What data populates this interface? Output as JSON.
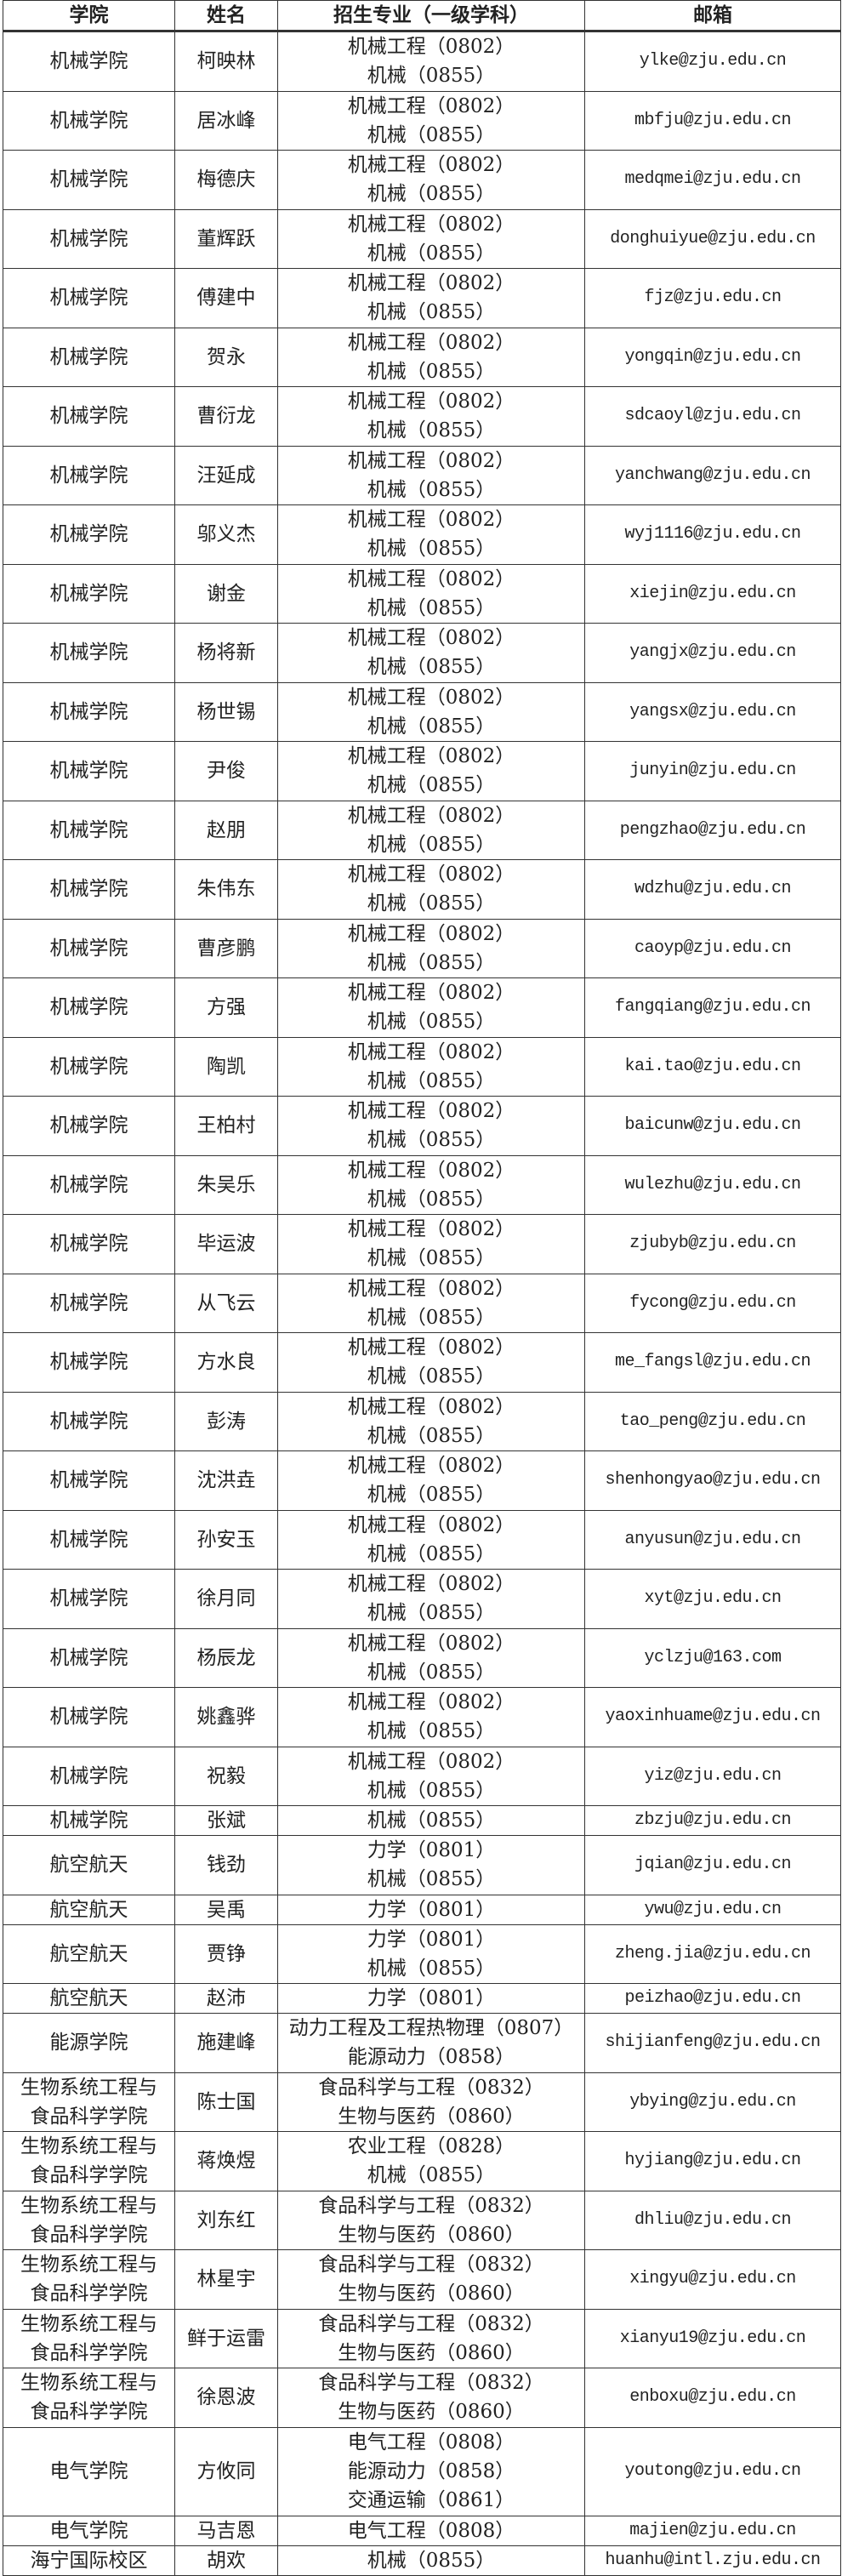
{
  "headers": [
    "学院",
    "姓名",
    "招生专业（一级学科）",
    "邮箱"
  ],
  "rows": [
    {
      "college": "机械学院",
      "name": "柯映林",
      "majors": [
        "机械工程（0802）",
        "机械（0855）"
      ],
      "email": "ylke@zju.edu.cn"
    },
    {
      "college": "机械学院",
      "name": "居冰峰",
      "majors": [
        "机械工程（0802）",
        "机械（0855）"
      ],
      "email": "mbfju@zju.edu.cn"
    },
    {
      "college": "机械学院",
      "name": "梅德庆",
      "majors": [
        "机械工程（0802）",
        "机械（0855）"
      ],
      "email": "medqmei@zju.edu.cn"
    },
    {
      "college": "机械学院",
      "name": "董辉跃",
      "majors": [
        "机械工程（0802）",
        "机械（0855）"
      ],
      "email": "donghuiyue@zju.edu.cn"
    },
    {
      "college": "机械学院",
      "name": "傅建中",
      "majors": [
        "机械工程（0802）",
        "机械（0855）"
      ],
      "email": "fjz@zju.edu.cn"
    },
    {
      "college": "机械学院",
      "name": "贺永",
      "majors": [
        "机械工程（0802）",
        "机械（0855）"
      ],
      "email": "yongqin@zju.edu.cn"
    },
    {
      "college": "机械学院",
      "name": "曹衍龙",
      "majors": [
        "机械工程（0802）",
        "机械（0855）"
      ],
      "email": "sdcaoyl@zju.edu.cn"
    },
    {
      "college": "机械学院",
      "name": "汪延成",
      "majors": [
        "机械工程（0802）",
        "机械（0855）"
      ],
      "email": "yanchwang@zju.edu.cn"
    },
    {
      "college": "机械学院",
      "name": "邬义杰",
      "majors": [
        "机械工程（0802）",
        "机械（0855）"
      ],
      "email": "wyj1116@zju.edu.cn"
    },
    {
      "college": "机械学院",
      "name": "谢金",
      "majors": [
        "机械工程（0802）",
        "机械（0855）"
      ],
      "email": "xiejin@zju.edu.cn"
    },
    {
      "college": "机械学院",
      "name": "杨将新",
      "majors": [
        "机械工程（0802）",
        "机械（0855）"
      ],
      "email": "yangjx@zju.edu.cn"
    },
    {
      "college": "机械学院",
      "name": "杨世锡",
      "majors": [
        "机械工程（0802）",
        "机械（0855）"
      ],
      "email": "yangsx@zju.edu.cn"
    },
    {
      "college": "机械学院",
      "name": "尹俊",
      "majors": [
        "机械工程（0802）",
        "机械（0855）"
      ],
      "email": "junyin@zju.edu.cn"
    },
    {
      "college": "机械学院",
      "name": "赵朋",
      "majors": [
        "机械工程（0802）",
        "机械（0855）"
      ],
      "email": "pengzhao@zju.edu.cn"
    },
    {
      "college": "机械学院",
      "name": "朱伟东",
      "majors": [
        "机械工程（0802）",
        "机械（0855）"
      ],
      "email": "wdzhu@zju.edu.cn"
    },
    {
      "college": "机械学院",
      "name": "曹彦鹏",
      "majors": [
        "机械工程（0802）",
        "机械（0855）"
      ],
      "email": "caoyp@zju.edu.cn"
    },
    {
      "college": "机械学院",
      "name": "方强",
      "majors": [
        "机械工程（0802）",
        "机械（0855）"
      ],
      "email": "fangqiang@zju.edu.cn"
    },
    {
      "college": "机械学院",
      "name": "陶凯",
      "majors": [
        "机械工程（0802）",
        "机械（0855）"
      ],
      "email": "kai.tao@zju.edu.cn"
    },
    {
      "college": "机械学院",
      "name": "王柏村",
      "majors": [
        "机械工程（0802）",
        "机械（0855）"
      ],
      "email": "baicunw@zju.edu.cn"
    },
    {
      "college": "机械学院",
      "name": "朱吴乐",
      "majors": [
        "机械工程（0802）",
        "机械（0855）"
      ],
      "email": "wulezhu@zju.edu.cn"
    },
    {
      "college": "机械学院",
      "name": "毕运波",
      "majors": [
        "机械工程（0802）",
        "机械（0855）"
      ],
      "email": "zjubyb@zju.edu.cn"
    },
    {
      "college": "机械学院",
      "name": "从飞云",
      "majors": [
        "机械工程（0802）",
        "机械（0855）"
      ],
      "email": "fycong@zju.edu.cn"
    },
    {
      "college": "机械学院",
      "name": "方水良",
      "majors": [
        "机械工程（0802）",
        "机械（0855）"
      ],
      "email": "me_fangsl@zju.edu.cn"
    },
    {
      "college": "机械学院",
      "name": "彭涛",
      "majors": [
        "机械工程（0802）",
        "机械（0855）"
      ],
      "email": "tao_peng@zju.edu.cn"
    },
    {
      "college": "机械学院",
      "name": "沈洪垚",
      "majors": [
        "机械工程（0802）",
        "机械（0855）"
      ],
      "email": "shenhongyao@zju.edu.cn"
    },
    {
      "college": "机械学院",
      "name": "孙安玉",
      "majors": [
        "机械工程（0802）",
        "机械（0855）"
      ],
      "email": "anyusun@zju.edu.cn"
    },
    {
      "college": "机械学院",
      "name": "徐月同",
      "majors": [
        "机械工程（0802）",
        "机械（0855）"
      ],
      "email": "xyt@zju.edu.cn"
    },
    {
      "college": "机械学院",
      "name": "杨辰龙",
      "majors": [
        "机械工程（0802）",
        "机械（0855）"
      ],
      "email": "yclzju@163.com"
    },
    {
      "college": "机械学院",
      "name": "姚鑫骅",
      "majors": [
        "机械工程（0802）",
        "机械（0855）"
      ],
      "email": "yaoxinhuame@zju.edu.cn"
    },
    {
      "college": "机械学院",
      "name": "祝毅",
      "majors": [
        "机械工程（0802）",
        "机械（0855）"
      ],
      "email": "yiz@zju.edu.cn"
    },
    {
      "college": "机械学院",
      "name": "张斌",
      "majors": [
        "机械（0855）"
      ],
      "email": "zbzju@zju.edu.cn"
    },
    {
      "college": "航空航天",
      "name": "钱劲",
      "majors": [
        "力学（0801）",
        "机械（0855）"
      ],
      "email": "jqian@zju.edu.cn"
    },
    {
      "college": "航空航天",
      "name": "吴禹",
      "majors": [
        "力学（0801）"
      ],
      "email": "ywu@zju.edu.cn"
    },
    {
      "college": "航空航天",
      "name": "贾铮",
      "majors": [
        "力学（0801）",
        "机械（0855）"
      ],
      "email": "zheng.jia@zju.edu.cn"
    },
    {
      "college": "航空航天",
      "name": "赵沛",
      "majors": [
        "力学（0801）"
      ],
      "email": "peizhao@zju.edu.cn"
    },
    {
      "college": "能源学院",
      "name": "施建峰",
      "majors": [
        "动力工程及工程热物理（0807）",
        "能源动力（0858）"
      ],
      "email": "shijianfeng@zju.edu.cn"
    },
    {
      "college": "生物系统工程与食品科学学院",
      "name": "陈士国",
      "majors": [
        "食品科学与工程（0832）",
        "生物与医药（0860）"
      ],
      "email": "ybying@zju.edu.cn"
    },
    {
      "college": "生物系统工程与食品科学学院",
      "name": "蒋焕煜",
      "majors": [
        "农业工程（0828）",
        "机械（0855）"
      ],
      "email": "hyjiang@zju.edu.cn"
    },
    {
      "college": "生物系统工程与食品科学学院",
      "name": "刘东红",
      "majors": [
        "食品科学与工程（0832）",
        "生物与医药（0860）"
      ],
      "email": "dhliu@zju.edu.cn"
    },
    {
      "college": "生物系统工程与食品科学学院",
      "name": "林星宇",
      "majors": [
        "食品科学与工程（0832）",
        "生物与医药（0860）"
      ],
      "email": "xingyu@zju.edu.cn"
    },
    {
      "college": "生物系统工程与食品科学学院",
      "name": "鲜于运雷",
      "majors": [
        "食品科学与工程（0832）",
        "生物与医药（0860）"
      ],
      "email": "xianyu19@zju.edu.cn"
    },
    {
      "college": "生物系统工程与食品科学学院",
      "name": "徐恩波",
      "majors": [
        "食品科学与工程（0832）",
        "生物与医药（0860）"
      ],
      "email": "enboxu@zju.edu.cn"
    },
    {
      "college": "电气学院",
      "name": "方攸同",
      "majors": [
        "电气工程（0808）",
        "能源动力（0858）",
        "交通运输（0861）"
      ],
      "email": "youtong@zju.edu.cn"
    },
    {
      "college": "电气学院",
      "name": "马吉恩",
      "majors": [
        "电气工程（0808）"
      ],
      "email": "majien@zju.edu.cn"
    },
    {
      "college": "海宁国际校区",
      "name": "胡欢",
      "majors": [
        "机械（0855）"
      ],
      "email": "huanhu@intl.zju.edu.cn"
    }
  ]
}
